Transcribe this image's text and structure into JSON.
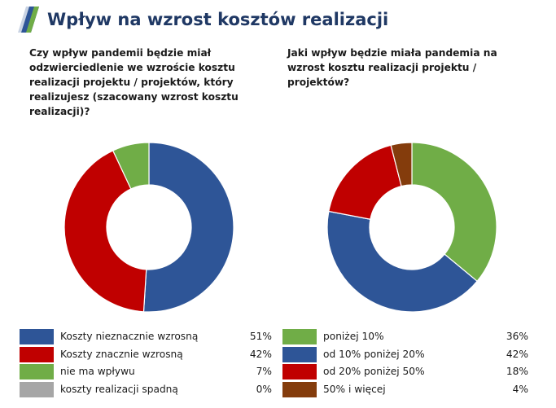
{
  "header": {
    "title": "Wpływ na wzrost kosztów realizacji",
    "logo_icon": "stripes-logo-icon"
  },
  "colors": {
    "title": "#1f3864",
    "blue": "#2e5597",
    "red": "#c00000",
    "green": "#70ad47",
    "gray": "#a6a6a6",
    "brown": "#843c0c"
  },
  "chart_data": [
    {
      "type": "pie",
      "title": "Czy wpływ pandemii będzie miał odzwierciedlenie we wzroście kosztu realizacji projektu / projektów, który realizujesz (szacowany wzrost kosztu realizacji)?",
      "title_lines": [
        "Czy wpływ pandemii będzie miał",
        "odzwierciedlenie we wzroście kosztu",
        "realizacji projektu / projektów, który",
        "realizujesz (szacowany wzrost kosztu",
        "realizacji)?"
      ],
      "legend": "bottom",
      "categories": [
        "Koszty nieznacznie wzrosną",
        "Koszty znacznie wzrosną",
        "nie ma wpływu",
        "koszty realizacji spadną"
      ],
      "values": [
        51,
        42,
        7,
        0
      ],
      "labels": [
        "51%",
        "42%",
        "7%",
        "0%"
      ],
      "colors": [
        "#2e5597",
        "#c00000",
        "#70ad47",
        "#a6a6a6"
      ]
    },
    {
      "type": "pie",
      "title": "Jaki wpływ będzie miała pandemia na wzrost kosztu realizacji projektu / projektów?",
      "title_lines": [
        "Jaki wpływ będzie miała pandemia na",
        "wzrost kosztu realizacji projektu /",
        "projektów?"
      ],
      "legend": "bottom",
      "categories": [
        "poniżej 10%",
        "od 10% poniżej 20%",
        "od 20% poniżej 50%",
        "50% i więcej"
      ],
      "values": [
        36,
        42,
        18,
        4
      ],
      "labels": [
        "36%",
        "42%",
        "18%",
        "4%"
      ],
      "colors": [
        "#70ad47",
        "#2e5597",
        "#c00000",
        "#843c0c"
      ]
    }
  ]
}
